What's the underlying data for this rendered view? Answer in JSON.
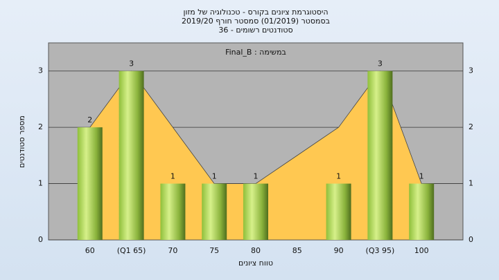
{
  "chart_data": {
    "type": "bar",
    "title": "היסטוגרמת ציונים בקורס - טכנולוגיה של מזון",
    "subtitle": [
      "בסמסטר  (01/2019)  סמסטר חורף 2019/20",
      "סטודנטים רשומים - 36"
    ],
    "annotation": "Final_B : במשימה",
    "y_label": "מספר סטודנטים",
    "x_label": "טווח ציונים",
    "categories": [
      "60",
      "(Q1 65)",
      "70",
      "75",
      "80",
      "85",
      "90",
      "(Q3 95)",
      "100"
    ],
    "series": [
      {
        "color": "#9fcb4f",
        "values": [
          2,
          3,
          1,
          1,
          1,
          null,
          1,
          3,
          1
        ]
      },
      {
        "color": "#ffc851",
        "values": [
          2,
          3,
          2,
          1,
          1,
          1.5,
          2,
          3,
          1
        ]
      }
    ],
    "ylim": [
      0,
      3.5
    ],
    "yticks": [
      0,
      1,
      2,
      3
    ],
    "grid": true
  }
}
